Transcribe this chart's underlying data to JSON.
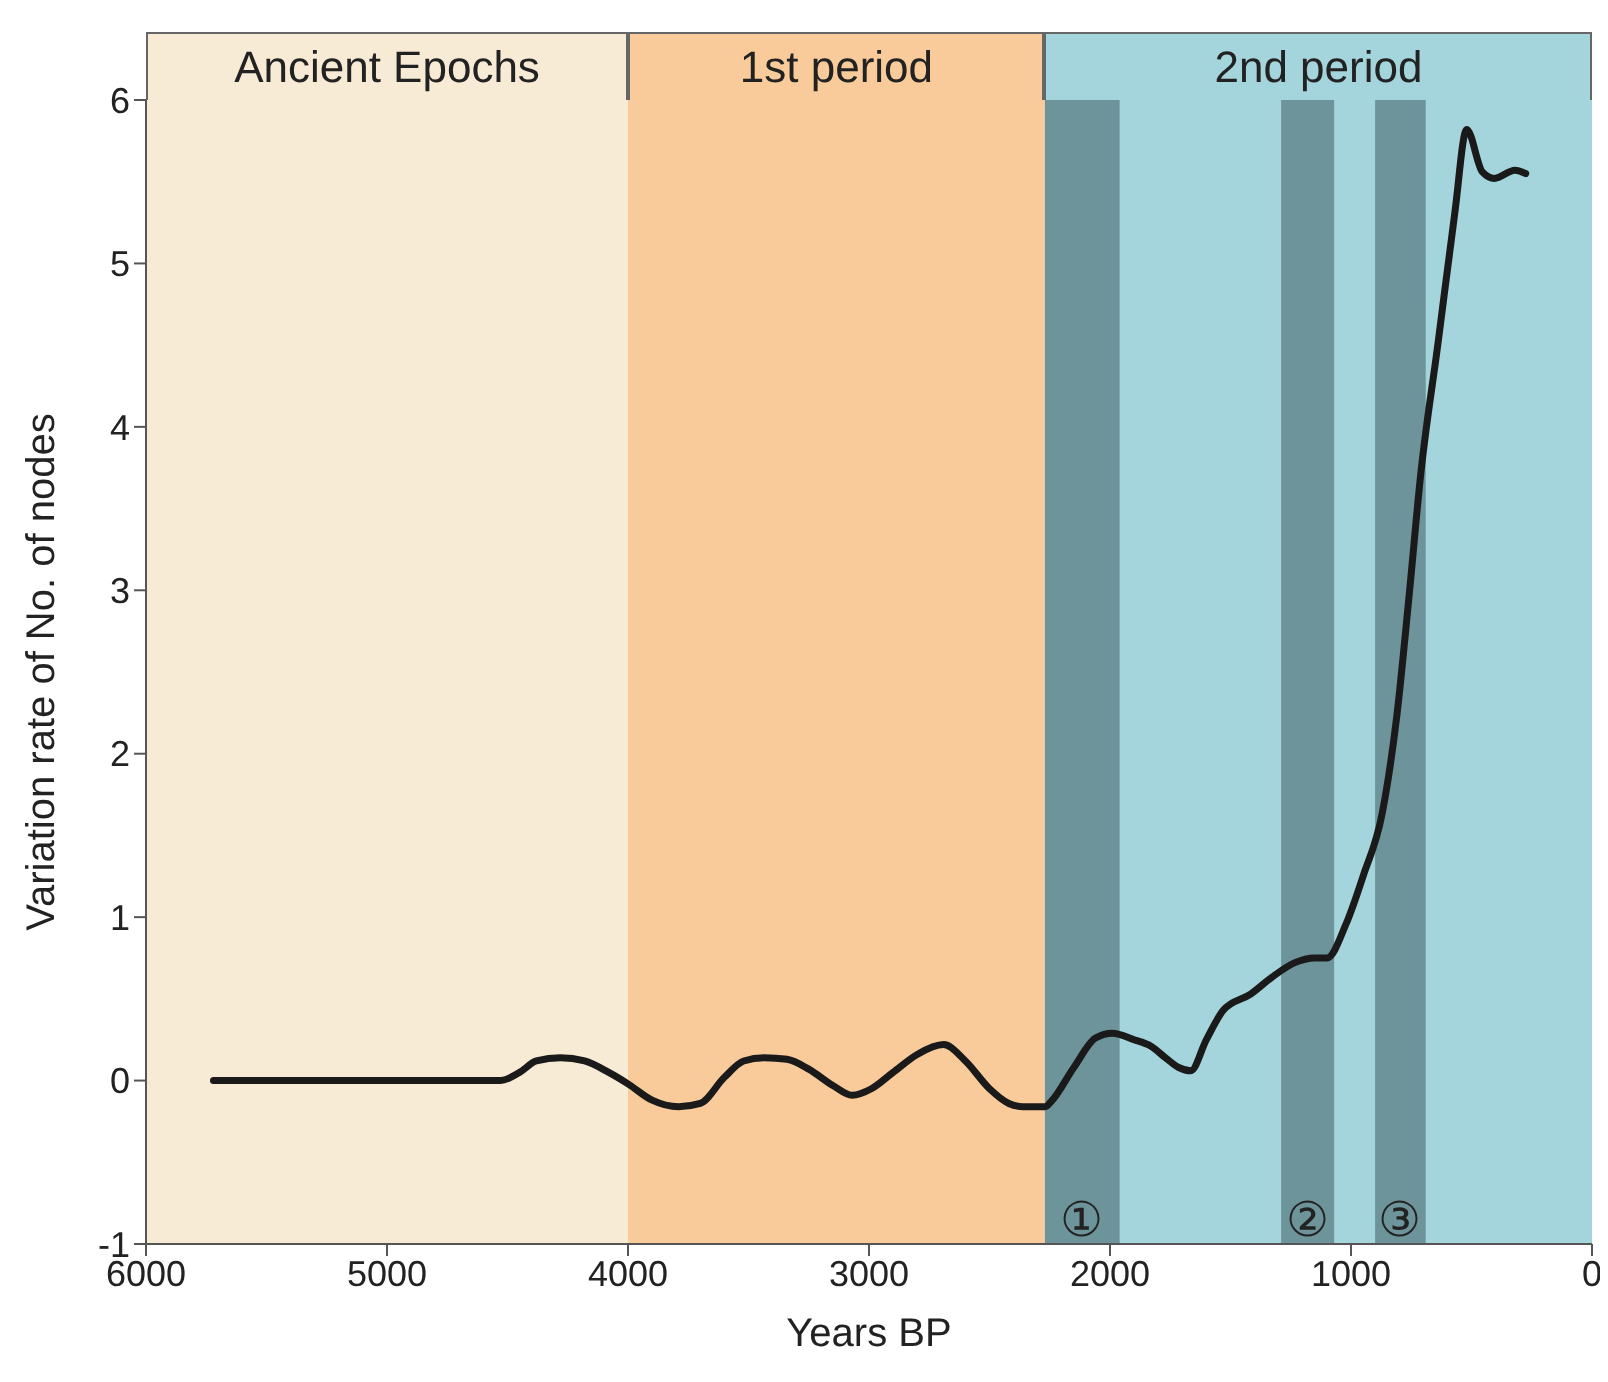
{
  "chart_data": {
    "type": "line",
    "xlabel": "Years BP",
    "ylabel": "Variation rate of No. of nodes",
    "x": [
      5720,
      5200,
      4800,
      4528,
      4450,
      4380,
      4280,
      4180,
      4080,
      4000,
      3900,
      3790,
      3700,
      3600,
      3520,
      3435,
      3340,
      3250,
      3150,
      3070,
      2990,
      2900,
      2800,
      2690,
      2600,
      2500,
      2420,
      2360,
      2268,
      2245,
      2150,
      2060,
      1990,
      1900,
      1830,
      1770,
      1715,
      1665,
      1600,
      1530,
      1415,
      1330,
      1235,
      1150,
      1100,
      1020,
      950,
      870,
      810,
      760,
      710,
      640,
      570,
      520,
      455,
      405,
      320,
      275
    ],
    "series": [
      {
        "color": "#1a1a1a",
        "values": [
          0,
          0,
          0,
          0,
          0.05,
          0.12,
          0.14,
          0.12,
          0.05,
          -0.02,
          -0.12,
          -0.16,
          -0.14,
          0.02,
          0.12,
          0.14,
          0.13,
          0.07,
          -0.03,
          -0.09,
          -0.05,
          0.05,
          0.16,
          0.22,
          0.12,
          -0.05,
          -0.14,
          -0.16,
          -0.16,
          -0.13,
          0.08,
          0.26,
          0.29,
          0.25,
          0.21,
          0.14,
          0.08,
          0.06,
          0.25,
          0.43,
          0.53,
          0.63,
          0.72,
          0.75,
          0.75,
          0.96,
          1.25,
          1.64,
          2.23,
          2.95,
          3.72,
          4.5,
          5.3,
          5.82,
          5.56,
          5.52,
          5.57,
          5.55
        ]
      }
    ],
    "xlim": [
      6000,
      0
    ],
    "xticks": [
      6000,
      5000,
      4000,
      3000,
      2000,
      1000,
      0
    ],
    "ylim": [
      -1,
      6
    ],
    "yticks": [
      -1,
      0,
      1,
      2,
      3,
      4,
      5,
      6
    ],
    "marker": "none",
    "line_style": "solid",
    "bands": [
      {
        "axis": "x",
        "from": 6000,
        "to": 4000,
        "label": "Ancient Epochs",
        "color": "#f8ebd6"
      },
      {
        "axis": "x",
        "from": 4000,
        "to": 2270,
        "label": "1st period",
        "color": "#f9cb9a"
      },
      {
        "axis": "x",
        "from": 2270,
        "to": 0,
        "label": "2nd period",
        "color": "#a4d4dc"
      },
      {
        "axis": "x",
        "from": 2270,
        "to": 1960,
        "label": "①",
        "color": "#6e949b"
      },
      {
        "axis": "x",
        "from": 1290,
        "to": 1070,
        "label": "②",
        "color": "#6e949b"
      },
      {
        "axis": "x",
        "from": 900,
        "to": 690,
        "label": "③",
        "color": "#6e949b"
      }
    ]
  }
}
